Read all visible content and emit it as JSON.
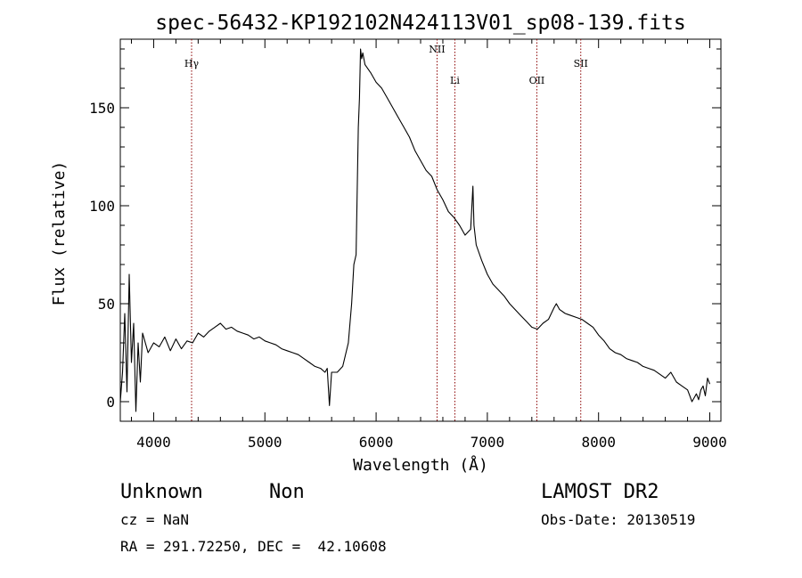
{
  "chart_data": {
    "type": "line",
    "title": "spec-56432-KP192102N424113V01_sp08-139.fits",
    "xlabel": "Wavelength (Å)",
    "ylabel": "Flux (relative)",
    "xlim": [
      3700,
      9100
    ],
    "ylim": [
      -10,
      185
    ],
    "x_ticks": [
      4000,
      5000,
      6000,
      7000,
      8000,
      9000
    ],
    "y_ticks": [
      0,
      50,
      100,
      150
    ],
    "line_color": "#000000",
    "marker_color": "#8b0000",
    "series": [
      {
        "x": [
          3700,
          3720,
          3740,
          3760,
          3780,
          3800,
          3820,
          3840,
          3860,
          3880,
          3900,
          3950,
          4000,
          4050,
          4100,
          4150,
          4200,
          4250,
          4300,
          4350,
          4400,
          4450,
          4500,
          4550,
          4600,
          4650,
          4700,
          4750,
          4800,
          4850,
          4900,
          4950,
          5000,
          5050,
          5100,
          5150,
          5200,
          5250,
          5300,
          5350,
          5400,
          5450,
          5500,
          5540,
          5560,
          5580,
          5600,
          5650,
          5700,
          5750,
          5780,
          5800,
          5820,
          5840,
          5850,
          5860,
          5870,
          5880,
          5900,
          5950,
          6000,
          6050,
          6100,
          6150,
          6200,
          6250,
          6300,
          6350,
          6400,
          6450,
          6500,
          6550,
          6600,
          6650,
          6700,
          6750,
          6800,
          6850,
          6870,
          6880,
          6900,
          6950,
          7000,
          7050,
          7100,
          7150,
          7200,
          7250,
          7300,
          7350,
          7400,
          7450,
          7500,
          7550,
          7600,
          7620,
          7650,
          7700,
          7750,
          7800,
          7850,
          7900,
          7950,
          8000,
          8050,
          8100,
          8150,
          8200,
          8250,
          8300,
          8350,
          8400,
          8450,
          8500,
          8550,
          8600,
          8650,
          8700,
          8750,
          8800,
          8820,
          8840,
          8860,
          8880,
          8900,
          8920,
          8940,
          8960,
          8980,
          9000
        ],
        "y": [
          0,
          15,
          45,
          5,
          65,
          20,
          40,
          -5,
          30,
          10,
          35,
          25,
          30,
          28,
          33,
          26,
          32,
          27,
          31,
          30,
          35,
          33,
          36,
          38,
          40,
          37,
          38,
          36,
          35,
          34,
          32,
          33,
          31,
          30,
          29,
          27,
          26,
          25,
          24,
          22,
          20,
          18,
          17,
          15,
          17,
          -2,
          15,
          15,
          18,
          30,
          50,
          70,
          75,
          140,
          155,
          180,
          175,
          178,
          172,
          168,
          163,
          160,
          155,
          150,
          145,
          140,
          135,
          128,
          123,
          118,
          115,
          108,
          103,
          97,
          94,
          90,
          85,
          88,
          110,
          90,
          80,
          72,
          65,
          60,
          57,
          54,
          50,
          47,
          44,
          41,
          38,
          37,
          40,
          42,
          48,
          50,
          47,
          45,
          44,
          43,
          42,
          40,
          38,
          34,
          31,
          27,
          25,
          24,
          22,
          21,
          20,
          18,
          17,
          16,
          14,
          12,
          15,
          10,
          8,
          6,
          3,
          0,
          2,
          4,
          1,
          6,
          8,
          3,
          12,
          9
        ]
      }
    ],
    "annotations": [
      {
        "label": "Hγ",
        "x": 4341
      },
      {
        "label": "NII",
        "x": 6548
      },
      {
        "label": "Li",
        "x": 6708
      },
      {
        "label": "OII",
        "x": 7445
      },
      {
        "label": "SII",
        "x": 7840
      }
    ]
  },
  "footer": {
    "object_class": "Unknown",
    "subclass": "Non",
    "survey": "LAMOST DR2",
    "cz": "cz = NaN",
    "obs_date": "Obs-Date: 20130519",
    "coords": "RA = 291.72250, DEC =  42.10608"
  }
}
